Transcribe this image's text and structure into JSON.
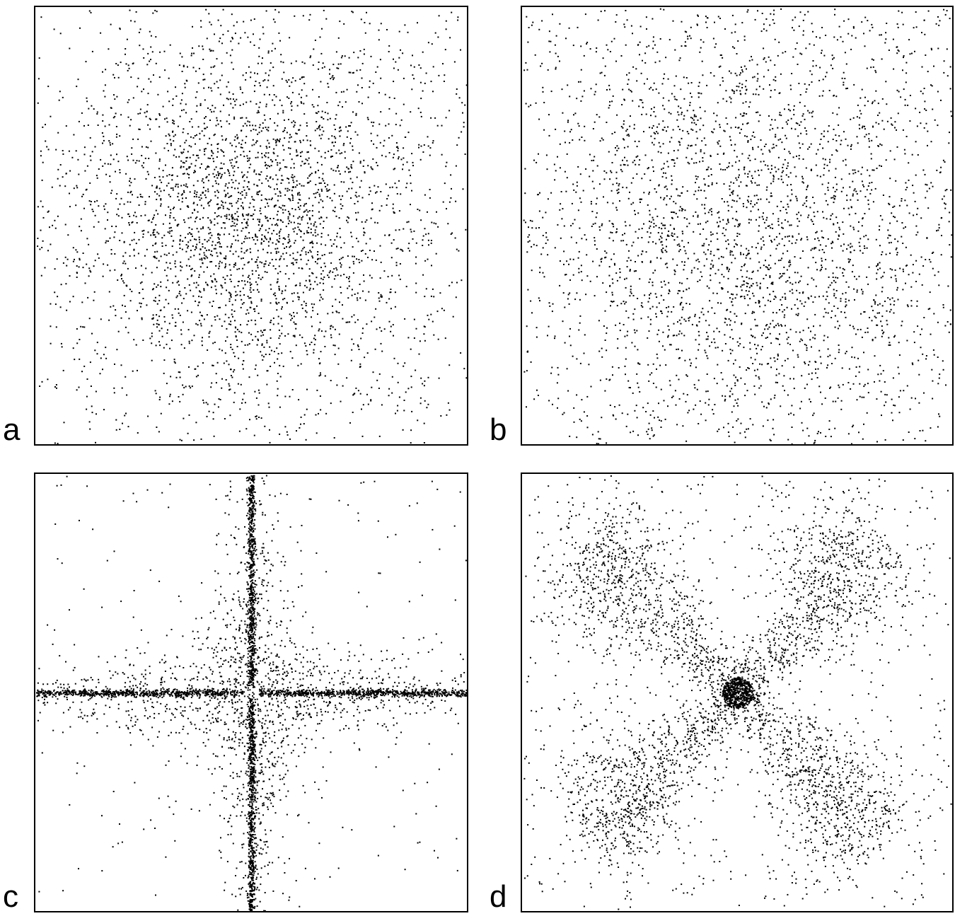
{
  "chart_data": [
    {
      "type": "scatter",
      "panel_label": "a",
      "distribution": "isotropic-gaussian",
      "center": [
        0,
        0
      ],
      "spread": 1.0,
      "background_density": "uniform-sparse",
      "point_color": "#000000"
    },
    {
      "type": "scatter",
      "panel_label": "b",
      "distribution": "broad-diffuse",
      "center": [
        0,
        0
      ],
      "spread": 1.6,
      "background_density": "uniform-sparse",
      "point_color": "#000000"
    },
    {
      "type": "scatter",
      "panel_label": "c",
      "distribution": "axis-aligned-cross",
      "center": [
        0,
        0
      ],
      "arm_angles_deg": [
        0,
        90
      ],
      "background_density": "uniform-very-sparse",
      "point_color": "#000000"
    },
    {
      "type": "scatter",
      "panel_label": "d",
      "distribution": "diagonal-cross",
      "center": [
        0.15,
        0.05
      ],
      "arm_angles_deg": [
        45,
        135
      ],
      "central_blob": true,
      "background_density": "uniform-sparse",
      "point_color": "#000000"
    }
  ]
}
